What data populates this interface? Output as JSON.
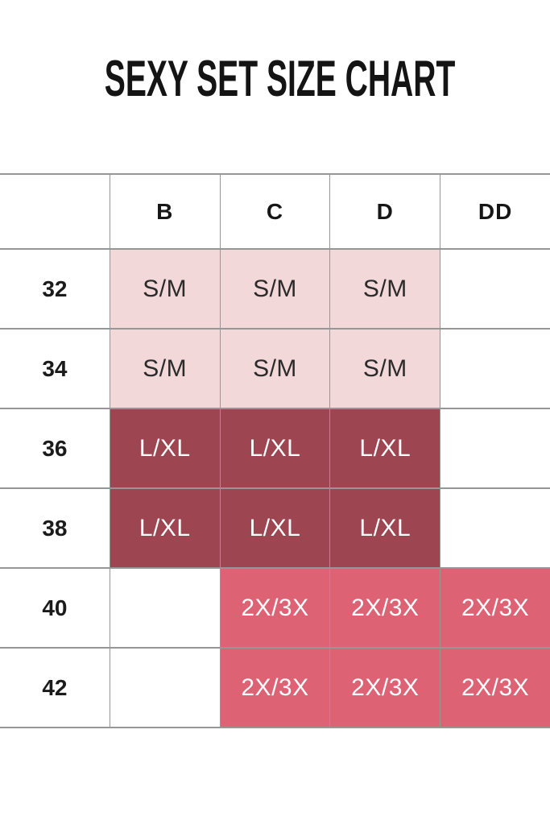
{
  "page": {
    "title": "SEXY SET SIZE CHART"
  },
  "colors": {
    "background": "#ffffff",
    "title_text": "#141414",
    "grid_border": "#969696",
    "light_pink_bg": "#f2d8d8",
    "light_pink_text": "#2b2b2b",
    "maroon_bg": "#9d4550",
    "rose_bg": "#dc6274",
    "colored_cell_text": "#ffffff"
  },
  "chart_data": {
    "type": "table",
    "title": "SEXY SET SIZE CHART",
    "columns": [
      "",
      "B",
      "C",
      "D",
      "DD"
    ],
    "row_label_meaning": "band size",
    "rows": [
      {
        "label": "32",
        "cells": [
          "S/M",
          "S/M",
          "S/M",
          ""
        ]
      },
      {
        "label": "34",
        "cells": [
          "S/M",
          "S/M",
          "S/M",
          ""
        ]
      },
      {
        "label": "36",
        "cells": [
          "L/XL",
          "L/XL",
          "L/XL",
          ""
        ]
      },
      {
        "label": "38",
        "cells": [
          "L/XL",
          "L/XL",
          "L/XL",
          ""
        ]
      },
      {
        "label": "40",
        "cells": [
          "",
          "2X/3X",
          "2X/3X",
          "2X/3X"
        ]
      },
      {
        "label": "42",
        "cells": [
          "",
          "2X/3X",
          "2X/3X",
          "2X/3X"
        ]
      }
    ]
  }
}
